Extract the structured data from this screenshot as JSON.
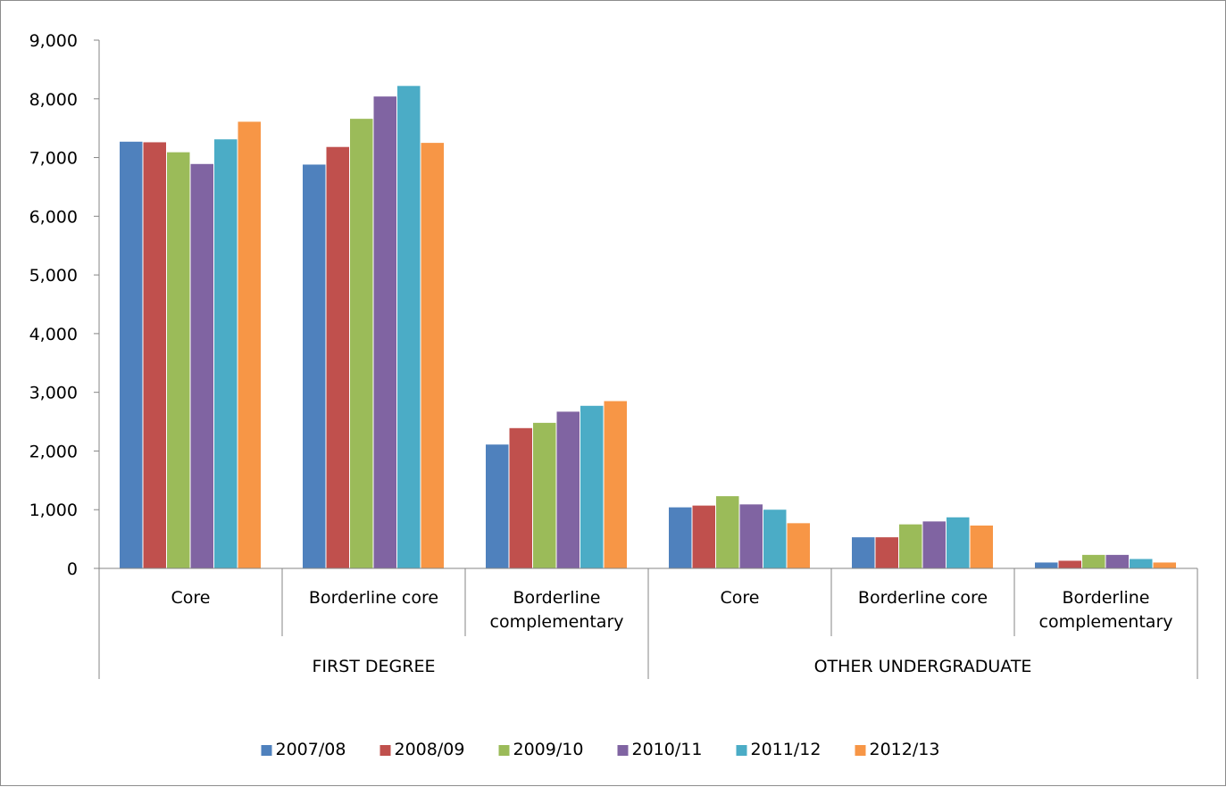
{
  "chart_data": {
    "type": "bar",
    "title": "",
    "xlabel": "",
    "ylabel": "",
    "ylim": [
      0,
      9000
    ],
    "yticks": [
      "0",
      "1,000",
      "2,000",
      "3,000",
      "4,000",
      "5,000",
      "6,000",
      "7,000",
      "8,000",
      "9,000"
    ],
    "ytick_values": [
      0,
      1000,
      2000,
      3000,
      4000,
      5000,
      6000,
      7000,
      8000,
      9000
    ],
    "grid": false,
    "legend_position": "bottom",
    "groups": [
      {
        "label": "FIRST DEGREE",
        "categories": [
          "Core",
          "Borderline core",
          "Borderline complementary"
        ]
      },
      {
        "label": "OTHER UNDERGRADUATE",
        "categories": [
          "Core",
          "Borderline core",
          "Borderline complementary"
        ]
      }
    ],
    "categories": [
      "Core",
      "Borderline core",
      "Borderline complementary",
      "Core",
      "Borderline core",
      "Borderline complementary"
    ],
    "series": [
      {
        "name": "2007/08",
        "color": "#4f81bd",
        "values": [
          7270,
          6880,
          2110,
          1040,
          530,
          100
        ]
      },
      {
        "name": "2008/09",
        "color": "#c0504d",
        "values": [
          7260,
          7180,
          2390,
          1070,
          530,
          130
        ]
      },
      {
        "name": "2009/10",
        "color": "#9bbb59",
        "values": [
          7090,
          7660,
          2480,
          1230,
          750,
          230
        ]
      },
      {
        "name": "2010/11",
        "color": "#8064a2",
        "values": [
          6890,
          8040,
          2670,
          1090,
          800,
          230
        ]
      },
      {
        "name": "2011/12",
        "color": "#4bacc6",
        "values": [
          7310,
          8220,
          2770,
          1000,
          870,
          160
        ]
      },
      {
        "name": "2012/13",
        "color": "#f79646",
        "values": [
          7610,
          7250,
          2850,
          770,
          730,
          100
        ]
      }
    ]
  }
}
